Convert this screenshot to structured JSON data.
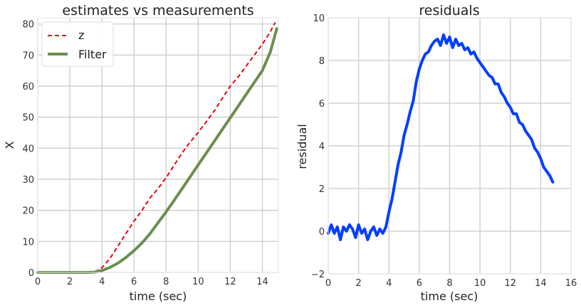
{
  "chart_data": [
    {
      "type": "line",
      "title": "estimates vs measurements",
      "xlabel": "time (sec)",
      "ylabel": "X",
      "xlim": [
        0,
        15
      ],
      "ylim": [
        0,
        82
      ],
      "xticks": [
        0,
        2,
        4,
        6,
        8,
        10,
        12,
        14
      ],
      "yticks": [
        0,
        10,
        20,
        30,
        40,
        50,
        60,
        70,
        80
      ],
      "grid": true,
      "legend": "top-left",
      "series": [
        {
          "name": "z",
          "style": "dashed",
          "color": "#e8000b",
          "x": [
            0,
            1,
            2,
            3,
            3.6,
            4.0,
            4.5,
            5.0,
            5.5,
            6.0,
            6.5,
            7.0,
            7.5,
            8.0,
            8.5,
            9.0,
            9.5,
            10.0,
            10.5,
            11.0,
            11.5,
            12.0,
            12.5,
            13.0,
            13.5,
            14.0,
            14.5,
            14.8
          ],
          "y": [
            0.1,
            0.0,
            0.2,
            0.1,
            0.3,
            1.5,
            4.5,
            8.5,
            12.5,
            16.5,
            20.0,
            24.0,
            27.0,
            30.5,
            34.5,
            38.5,
            42.0,
            45.0,
            48.5,
            52.0,
            56.0,
            60.0,
            63.0,
            66.5,
            70.0,
            73.5,
            77.5,
            80.5
          ]
        },
        {
          "name": "Filter",
          "style": "solid",
          "color": "#6a8f4f",
          "x": [
            0,
            1,
            2,
            3,
            3.5,
            4.0,
            4.5,
            5.0,
            5.5,
            6.0,
            6.5,
            7.0,
            7.5,
            8.0,
            8.5,
            9.0,
            9.5,
            10.0,
            10.5,
            11.0,
            11.5,
            12.0,
            12.5,
            13.0,
            13.5,
            14.0,
            14.5,
            14.9
          ],
          "y": [
            0,
            0,
            0,
            0,
            0.1,
            0.6,
            1.6,
            3.0,
            4.8,
            7.0,
            9.5,
            12.5,
            16.0,
            19.5,
            23.2,
            27.0,
            30.8,
            34.6,
            38.4,
            42.2,
            46.0,
            49.8,
            53.6,
            57.4,
            61.2,
            65.0,
            71.0,
            78.5
          ]
        }
      ]
    },
    {
      "type": "line",
      "title": "residuals",
      "xlabel": "time (sec)",
      "ylabel": "residual",
      "xlim": [
        0,
        16
      ],
      "ylim": [
        -2,
        10
      ],
      "xticks": [
        0,
        2,
        4,
        6,
        8,
        10,
        12,
        14,
        16
      ],
      "yticks": [
        -2,
        0,
        2,
        4,
        6,
        8,
        10
      ],
      "grid": true,
      "series": [
        {
          "color": "#023eff",
          "x": [
            0.0,
            0.2,
            0.4,
            0.6,
            0.8,
            1.0,
            1.2,
            1.4,
            1.6,
            1.8,
            2.0,
            2.2,
            2.4,
            2.6,
            2.8,
            3.0,
            3.2,
            3.4,
            3.6,
            3.8,
            4.0,
            4.2,
            4.4,
            4.6,
            4.8,
            5.0,
            5.2,
            5.4,
            5.6,
            5.8,
            6.0,
            6.2,
            6.4,
            6.6,
            6.8,
            7.0,
            7.2,
            7.4,
            7.6,
            7.8,
            8.0,
            8.2,
            8.4,
            8.6,
            8.8,
            9.0,
            9.2,
            9.4,
            9.6,
            9.8,
            10.0,
            10.2,
            10.4,
            10.6,
            10.8,
            11.0,
            11.2,
            11.4,
            11.6,
            11.8,
            12.0,
            12.2,
            12.4,
            12.6,
            12.8,
            13.0,
            13.2,
            13.4,
            13.6,
            13.8,
            14.0,
            14.2,
            14.4,
            14.6,
            14.8
          ],
          "y": [
            -0.1,
            0.3,
            -0.1,
            0.2,
            -0.4,
            0.2,
            0.0,
            0.3,
            0.1,
            -0.3,
            0.3,
            -0.1,
            0.1,
            -0.4,
            0.0,
            0.2,
            -0.2,
            0.1,
            -0.1,
            0.2,
            0.9,
            1.5,
            2.3,
            3.1,
            3.7,
            4.5,
            5.0,
            5.6,
            6.1,
            7.0,
            7.6,
            8.0,
            8.3,
            8.4,
            8.7,
            8.9,
            9.0,
            8.7,
            9.2,
            8.8,
            9.1,
            8.6,
            9.0,
            8.7,
            8.8,
            8.5,
            8.6,
            8.3,
            8.4,
            8.1,
            7.9,
            7.7,
            7.5,
            7.3,
            7.2,
            6.9,
            6.9,
            6.5,
            6.3,
            6.0,
            5.8,
            5.5,
            5.5,
            5.1,
            5.0,
            4.7,
            4.5,
            4.3,
            3.9,
            3.7,
            3.4,
            3.0,
            2.8,
            2.6,
            2.3
          ]
        }
      ]
    }
  ]
}
